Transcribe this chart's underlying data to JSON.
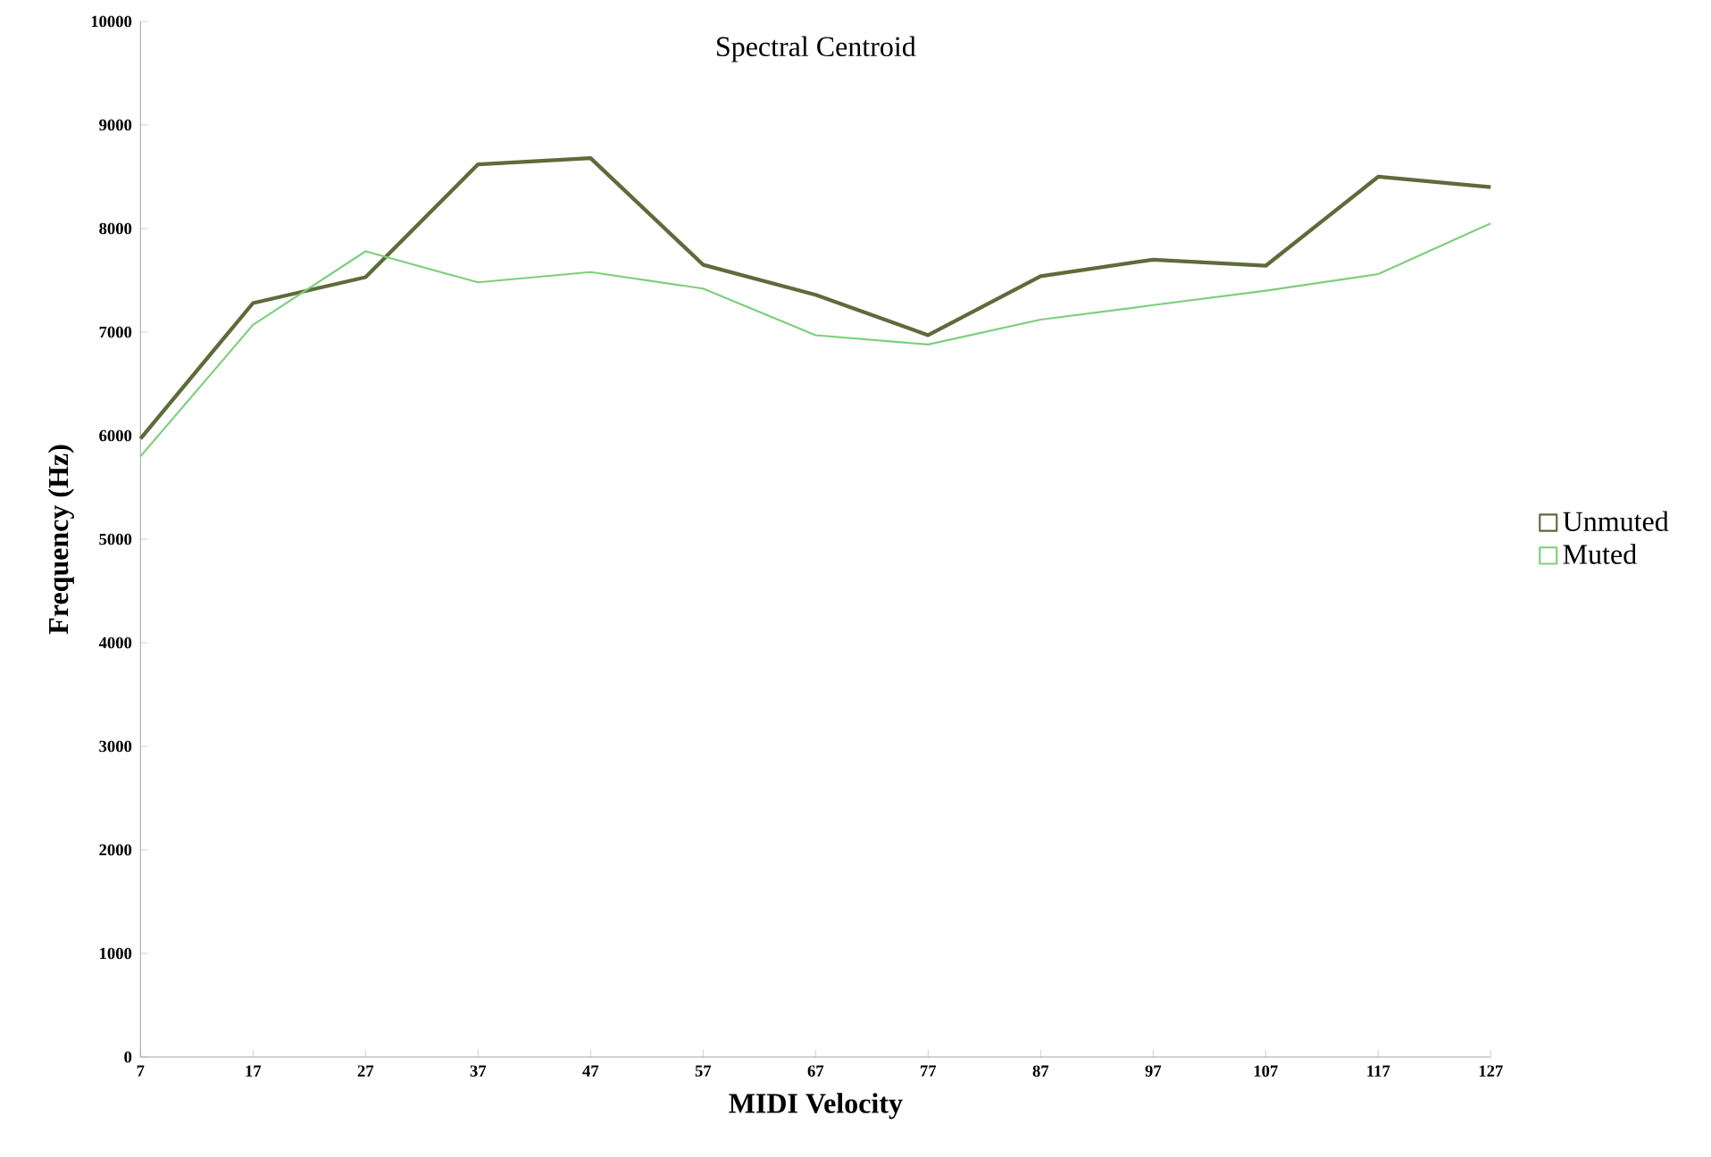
{
  "chart_data": {
    "type": "line",
    "title": "Spectral Centroid",
    "xlabel": "MIDI Velocity",
    "ylabel": "Frequency (Hz)",
    "x": [
      7,
      17,
      27,
      37,
      47,
      57,
      67,
      77,
      87,
      97,
      107,
      117,
      127
    ],
    "series": [
      {
        "name": "Unmuted",
        "color": "#5e6b3a",
        "values": [
          5970,
          7280,
          7530,
          8620,
          8680,
          7650,
          7360,
          6970,
          7540,
          7700,
          7640,
          8500,
          8400
        ]
      },
      {
        "name": "Muted",
        "color": "#7ccf7c",
        "values": [
          5800,
          7070,
          7780,
          7480,
          7580,
          7420,
          6970,
          6880,
          7120,
          7260,
          7400,
          7560,
          8050
        ]
      }
    ],
    "xlim": [
      7,
      127
    ],
    "xticks": [
      7,
      17,
      27,
      37,
      47,
      57,
      67,
      77,
      87,
      97,
      107,
      117,
      127
    ],
    "ylim": [
      0,
      10000
    ],
    "yticks": [
      0,
      1000,
      2000,
      3000,
      4000,
      5000,
      6000,
      7000,
      8000,
      9000,
      10000
    ],
    "grid": false,
    "legend": "right",
    "marker": "none",
    "line_style": "solid"
  }
}
